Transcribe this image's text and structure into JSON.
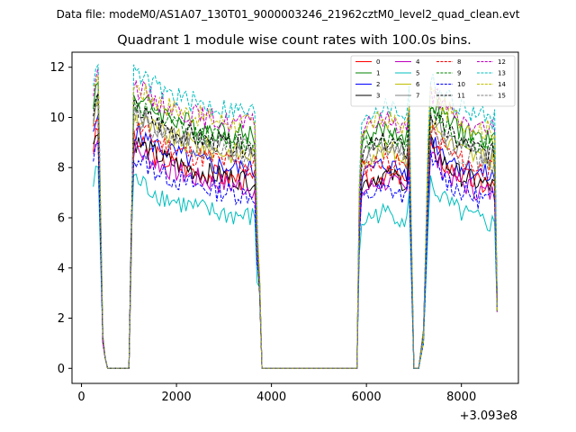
{
  "figure": {
    "suptitle": "Data file: modeM0/AS1A07_130T01_9000003246_21962cztM0_level2_quad_clean.evt",
    "title": "Quadrant 1 module wise count rates with 100.0s bins.",
    "x_offset_label": "+3.093e8"
  },
  "chart_data": {
    "type": "line",
    "title": "Quadrant 1 module wise count rates with 100.0s bins.",
    "xlabel": "",
    "ylabel": "",
    "x_offset": 309300000,
    "xlim": [
      -200,
      9200
    ],
    "ylim": [
      -0.6,
      12.6
    ],
    "xticks": [
      0,
      2000,
      4000,
      6000,
      8000
    ],
    "yticks": [
      0,
      2,
      4,
      6,
      8,
      10,
      12
    ],
    "xtick_labels": [
      "0",
      "2000",
      "4000",
      "6000",
      "8000"
    ],
    "ytick_labels": [
      "0",
      "2",
      "4",
      "6",
      "8",
      "10",
      "12"
    ],
    "legend_location": "upper right",
    "segments": [
      [
        250,
        550
      ],
      [
        1050,
        3750
      ],
      [
        5850,
        6950
      ],
      [
        7350,
        8750
      ]
    ],
    "gap_points": [
      [
        550,
        0
      ],
      [
        750,
        0
      ],
      [
        1000,
        0
      ],
      [
        3800,
        0
      ],
      [
        4300,
        0
      ],
      [
        4800,
        0
      ],
      [
        5300,
        0
      ],
      [
        5800,
        0
      ],
      [
        7000,
        0
      ],
      [
        7100,
        0
      ]
    ],
    "series": [
      {
        "name": "0",
        "color": "#ff0000",
        "style": "solid",
        "level": 7.3
      },
      {
        "name": "1",
        "color": "#008000",
        "style": "solid",
        "level": 9.1
      },
      {
        "name": "2",
        "color": "#0000ff",
        "style": "solid",
        "level": 7.7
      },
      {
        "name": "3",
        "color": "#000000",
        "style": "solid",
        "level": 7.3
      },
      {
        "name": "4",
        "color": "#bf00bf",
        "style": "solid",
        "level": 7.0
      },
      {
        "name": "5",
        "color": "#00bfbf",
        "style": "solid",
        "level": 5.8
      },
      {
        "name": "6",
        "color": "#bfbf00",
        "style": "solid",
        "level": 8.3
      },
      {
        "name": "7",
        "color": "#808080",
        "style": "solid",
        "level": 8.5
      },
      {
        "name": "8",
        "color": "#ff0000",
        "style": "dashed",
        "level": 7.9
      },
      {
        "name": "9",
        "color": "#008000",
        "style": "dashed",
        "level": 8.8
      },
      {
        "name": "10",
        "color": "#0000ff",
        "style": "dashed",
        "level": 6.7
      },
      {
        "name": "11",
        "color": "#000000",
        "style": "dashed",
        "level": 8.6
      },
      {
        "name": "12",
        "color": "#bf00bf",
        "style": "dashed",
        "level": 9.5
      },
      {
        "name": "13",
        "color": "#00bfbf",
        "style": "dashed",
        "level": 10.0
      },
      {
        "name": "14",
        "color": "#bfbf00",
        "style": "dashed",
        "level": 9.5
      },
      {
        "name": "15",
        "color": "#808080",
        "style": "dashed",
        "level": 8.2
      }
    ]
  }
}
